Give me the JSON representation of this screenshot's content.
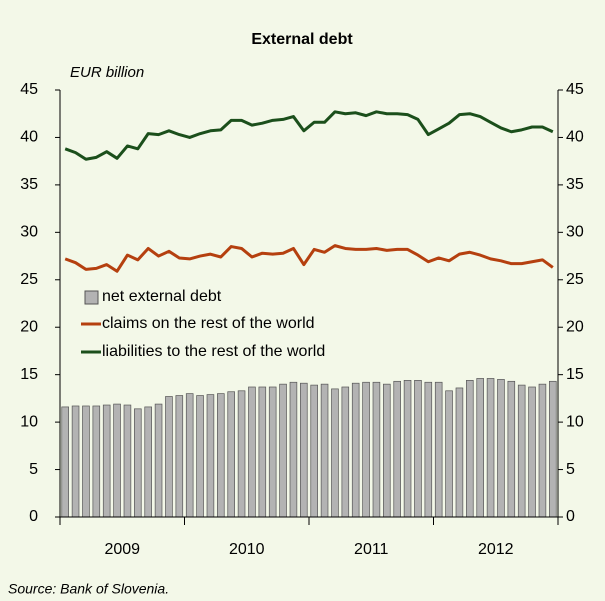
{
  "chart_data": {
    "type": "bar_line",
    "title": "External debt",
    "y_axis_label": "EUR billion",
    "source": "Source: Bank of Slovenia.",
    "categories": [
      null,
      null,
      null,
      null,
      null,
      null,
      null,
      null,
      null,
      null,
      null,
      null,
      null,
      null,
      null,
      null,
      null,
      null,
      null,
      null,
      null,
      null,
      null,
      null,
      null,
      null,
      null,
      null,
      null,
      null,
      null,
      null,
      null,
      null,
      null,
      null,
      null,
      null,
      null,
      null,
      null,
      null,
      null,
      null,
      null,
      null,
      null,
      null
    ],
    "x_groups": [
      "2009",
      "2010",
      "2011",
      "2012"
    ],
    "series": [
      {
        "name": "net external debt",
        "type": "bar",
        "color": "#b3b3b3",
        "values": [
          11.6,
          11.7,
          11.7,
          11.7,
          11.8,
          11.9,
          11.8,
          11.4,
          11.6,
          11.9,
          12.7,
          12.8,
          13.0,
          12.8,
          12.9,
          13.0,
          13.2,
          13.3,
          13.7,
          13.7,
          13.7,
          14.0,
          14.2,
          14.1,
          13.9,
          14.0,
          13.5,
          13.7,
          14.1,
          14.2,
          14.2,
          14.0,
          14.3,
          14.4,
          14.4,
          14.2,
          14.2,
          13.3,
          13.6,
          14.4,
          14.6,
          14.6,
          14.5,
          14.3,
          13.9,
          13.7,
          14.0,
          14.3
        ]
      },
      {
        "name": "claims on the rest of the world",
        "type": "line",
        "color": "#b5400f",
        "values": [
          27.2,
          26.8,
          26.1,
          26.2,
          26.6,
          25.9,
          27.6,
          27.1,
          28.3,
          27.5,
          28.0,
          27.3,
          27.2,
          27.5,
          27.7,
          27.4,
          28.5,
          28.3,
          27.4,
          27.8,
          27.7,
          27.8,
          28.3,
          26.6,
          28.2,
          27.9,
          28.6,
          28.3,
          28.2,
          28.2,
          28.3,
          28.1,
          28.2,
          28.2,
          27.6,
          26.9,
          27.3,
          27.0,
          27.7,
          27.9,
          27.6,
          27.2,
          27.0,
          26.7,
          26.7,
          26.9,
          27.1,
          26.3
        ]
      },
      {
        "name": "liabilities to the rest of the world",
        "type": "line",
        "color": "#1b4f1b",
        "values": [
          38.8,
          38.4,
          37.7,
          37.9,
          38.5,
          37.8,
          39.1,
          38.8,
          40.4,
          40.3,
          40.7,
          40.3,
          40.0,
          40.4,
          40.7,
          40.8,
          41.8,
          41.8,
          41.3,
          41.5,
          41.8,
          41.9,
          42.2,
          40.7,
          41.6,
          41.6,
          42.7,
          42.5,
          42.6,
          42.3,
          42.7,
          42.5,
          42.5,
          42.4,
          41.9,
          40.3,
          40.9,
          41.5,
          42.4,
          42.5,
          42.2,
          41.6,
          41.0,
          40.6,
          40.8,
          41.1,
          41.1,
          40.6
        ]
      }
    ],
    "ylim": [
      0,
      45
    ],
    "yticks": [
      0,
      5,
      10,
      15,
      20,
      25,
      30,
      35,
      40,
      45
    ],
    "y2lim": [
      0,
      45
    ],
    "y2ticks": [
      0,
      5,
      10,
      15,
      20,
      25,
      30,
      35,
      40,
      45
    ],
    "legend": "left",
    "grid": false
  }
}
